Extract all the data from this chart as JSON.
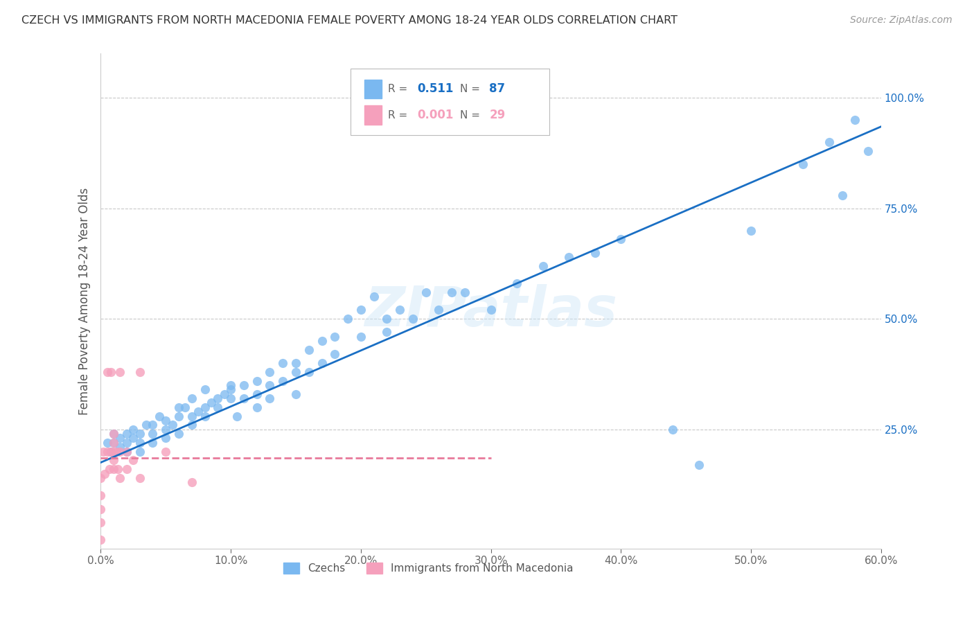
{
  "title": "CZECH VS IMMIGRANTS FROM NORTH MACEDONIA FEMALE POVERTY AMONG 18-24 YEAR OLDS CORRELATION CHART",
  "source": "Source: ZipAtlas.com",
  "ylabel": "Female Poverty Among 18-24 Year Olds",
  "xlim": [
    0.0,
    0.6
  ],
  "ylim": [
    -0.02,
    1.1
  ],
  "bg_color": "#ffffff",
  "grid_color": "#c8c8c8",
  "watermark": "ZIPatlas",
  "legend_czechs": "Czechs",
  "legend_nm": "Immigrants from North Macedonia",
  "r_czech": "0.511",
  "n_czech": "87",
  "r_nm": "0.001",
  "n_nm": "29",
  "czech_color": "#7ab8f0",
  "nm_color": "#f5a0bc",
  "czech_line_color": "#1a6fc4",
  "nm_line_color": "#e87a9a",
  "xtick_labels": [
    "0.0%",
    "10.0%",
    "20.0%",
    "30.0%",
    "40.0%",
    "50.0%",
    "60.0%"
  ],
  "xtick_values": [
    0.0,
    0.1,
    0.2,
    0.3,
    0.4,
    0.5,
    0.6
  ],
  "ytick_values": [
    0.25,
    0.5,
    0.75,
    1.0
  ],
  "ytick_labels": [
    "25.0%",
    "50.0%",
    "75.0%",
    "100.0%"
  ],
  "czechs_x": [
    0.005,
    0.008,
    0.01,
    0.01,
    0.015,
    0.015,
    0.02,
    0.02,
    0.02,
    0.025,
    0.025,
    0.03,
    0.03,
    0.03,
    0.035,
    0.04,
    0.04,
    0.04,
    0.045,
    0.05,
    0.05,
    0.05,
    0.055,
    0.06,
    0.06,
    0.06,
    0.065,
    0.07,
    0.07,
    0.07,
    0.075,
    0.08,
    0.08,
    0.08,
    0.085,
    0.09,
    0.09,
    0.095,
    0.1,
    0.1,
    0.1,
    0.105,
    0.11,
    0.11,
    0.12,
    0.12,
    0.12,
    0.13,
    0.13,
    0.13,
    0.14,
    0.14,
    0.15,
    0.15,
    0.15,
    0.16,
    0.16,
    0.17,
    0.17,
    0.18,
    0.18,
    0.19,
    0.2,
    0.2,
    0.21,
    0.22,
    0.22,
    0.23,
    0.24,
    0.25,
    0.26,
    0.27,
    0.28,
    0.3,
    0.32,
    0.34,
    0.36,
    0.38,
    0.4,
    0.44,
    0.46,
    0.5,
    0.54,
    0.56,
    0.57,
    0.58,
    0.59
  ],
  "czechs_y": [
    0.22,
    0.2,
    0.24,
    0.22,
    0.21,
    0.23,
    0.22,
    0.2,
    0.24,
    0.23,
    0.25,
    0.22,
    0.24,
    0.2,
    0.26,
    0.22,
    0.26,
    0.24,
    0.28,
    0.25,
    0.23,
    0.27,
    0.26,
    0.28,
    0.3,
    0.24,
    0.3,
    0.28,
    0.32,
    0.26,
    0.29,
    0.3,
    0.28,
    0.34,
    0.31,
    0.32,
    0.3,
    0.33,
    0.34,
    0.32,
    0.35,
    0.28,
    0.35,
    0.32,
    0.36,
    0.33,
    0.3,
    0.38,
    0.35,
    0.32,
    0.4,
    0.36,
    0.4,
    0.38,
    0.33,
    0.43,
    0.38,
    0.45,
    0.4,
    0.46,
    0.42,
    0.5,
    0.52,
    0.46,
    0.55,
    0.5,
    0.47,
    0.52,
    0.5,
    0.56,
    0.52,
    0.56,
    0.56,
    0.52,
    0.58,
    0.62,
    0.64,
    0.65,
    0.68,
    0.25,
    0.17,
    0.7,
    0.85,
    0.9,
    0.78,
    0.95,
    0.88
  ],
  "nm_x": [
    0.0,
    0.0,
    0.0,
    0.0,
    0.0,
    0.002,
    0.003,
    0.005,
    0.005,
    0.007,
    0.008,
    0.008,
    0.01,
    0.01,
    0.01,
    0.01,
    0.01,
    0.012,
    0.013,
    0.015,
    0.015,
    0.015,
    0.02,
    0.02,
    0.025,
    0.03,
    0.03,
    0.05,
    0.07
  ],
  "nm_y": [
    0.0,
    0.04,
    0.07,
    0.1,
    0.14,
    0.2,
    0.15,
    0.2,
    0.38,
    0.16,
    0.2,
    0.38,
    0.2,
    0.22,
    0.16,
    0.18,
    0.24,
    0.2,
    0.16,
    0.38,
    0.2,
    0.14,
    0.2,
    0.16,
    0.18,
    0.14,
    0.38,
    0.2,
    0.13
  ],
  "czech_trendline_x": [
    0.0,
    0.6
  ],
  "czech_trendline_y": [
    0.175,
    0.935
  ],
  "nm_trendline_x0": 0.0,
  "nm_trendline_x1": 0.3,
  "nm_trendline_y": 0.185,
  "right_axis_color": "#1a6fc4"
}
